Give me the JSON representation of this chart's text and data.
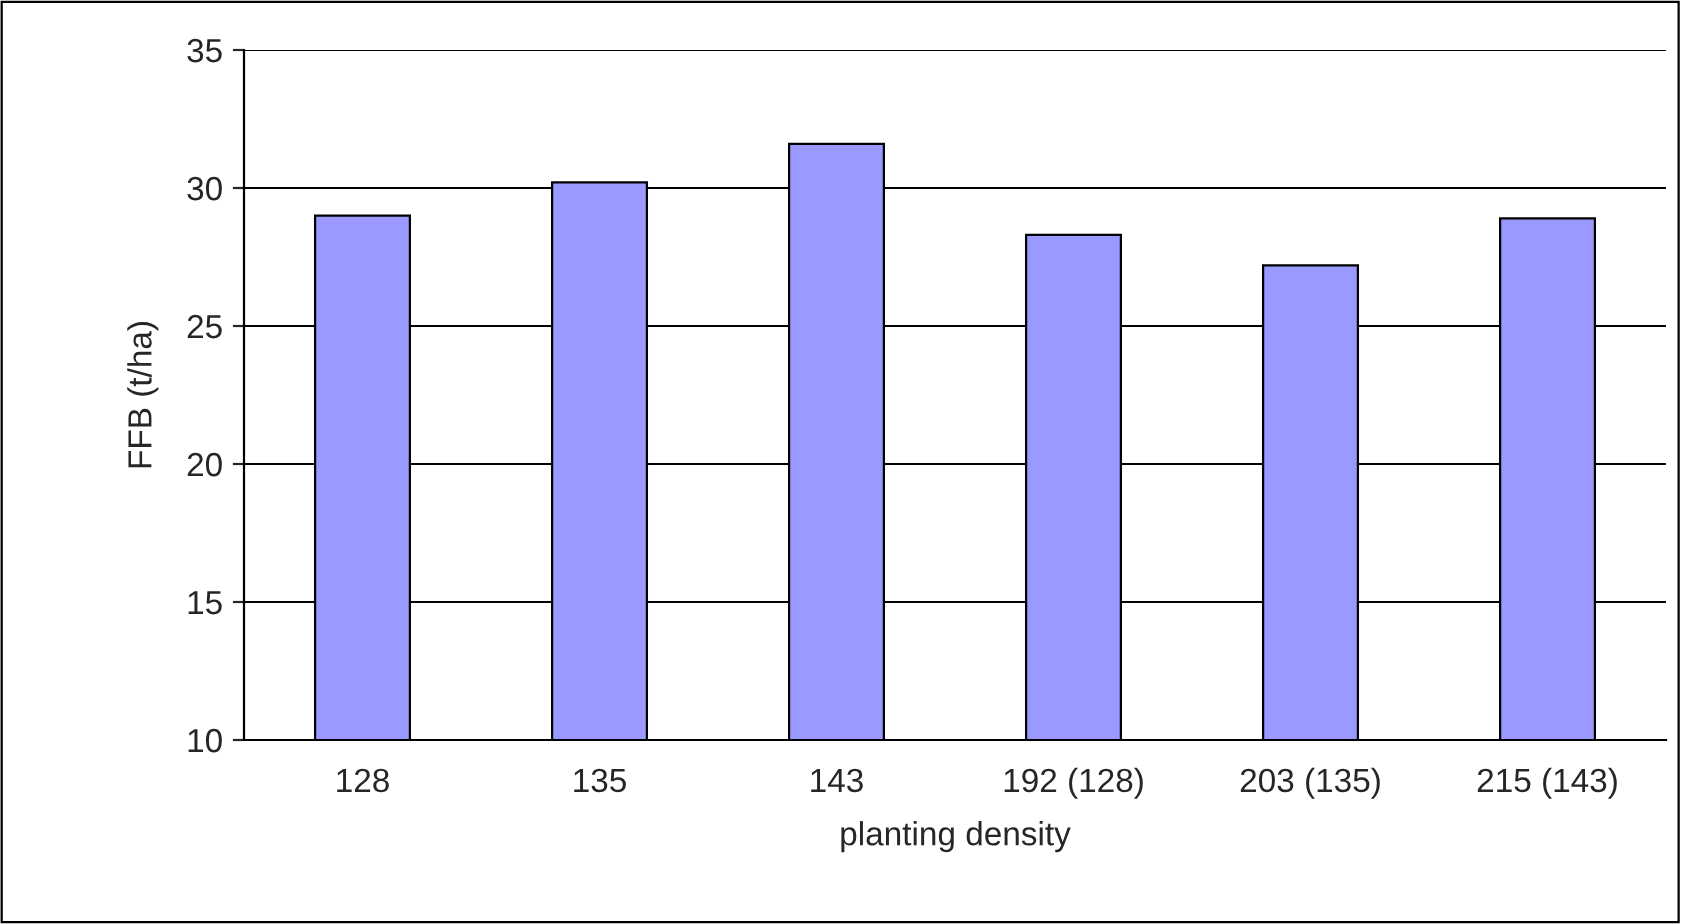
{
  "chart_data": {
    "type": "bar",
    "xlabel": "planting density",
    "ylabel": "FFB (t/ha)",
    "categories": [
      "128",
      "135",
      "143",
      "192 (128)",
      "203 (135)",
      "215 (143)"
    ],
    "values": [
      29.0,
      30.2,
      31.6,
      28.3,
      27.2,
      28.9
    ],
    "color": "#9999ff",
    "ylim": [
      10,
      35
    ],
    "yticks": [
      10,
      15,
      20,
      25,
      30,
      35
    ],
    "grid": "y",
    "legend": false
  }
}
